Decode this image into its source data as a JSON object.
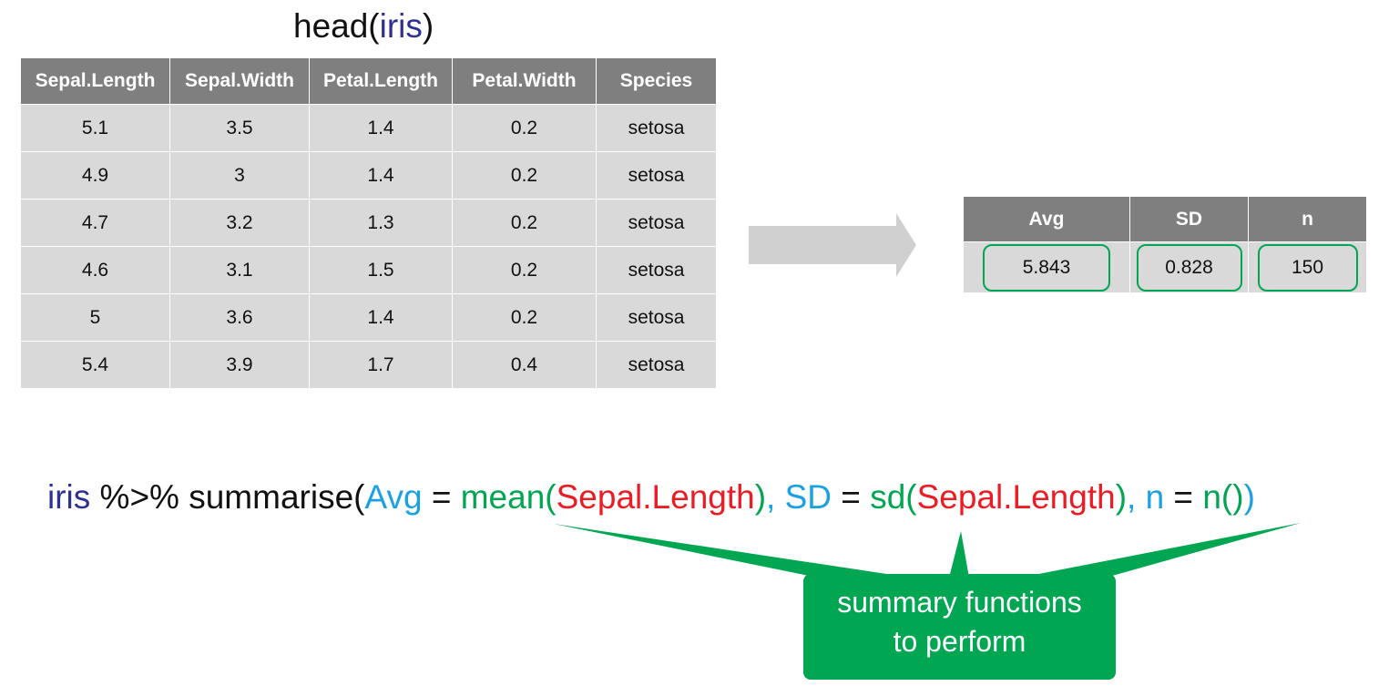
{
  "title": {
    "fn": "head(",
    "arg": "iris",
    "close": ")"
  },
  "iris_table": {
    "headers": [
      "Sepal.Length",
      "Sepal.Width",
      "Petal.Length",
      "Petal.Width",
      "Species"
    ],
    "rows": [
      [
        "5.1",
        "3.5",
        "1.4",
        "0.2",
        "setosa"
      ],
      [
        "4.9",
        "3",
        "1.4",
        "0.2",
        "setosa"
      ],
      [
        "4.7",
        "3.2",
        "1.3",
        "0.2",
        "setosa"
      ],
      [
        "4.6",
        "3.1",
        "1.5",
        "0.2",
        "setosa"
      ],
      [
        "5",
        "3.6",
        "1.4",
        "0.2",
        "setosa"
      ],
      [
        "5.4",
        "3.9",
        "1.7",
        "0.4",
        "setosa"
      ]
    ]
  },
  "summary_table": {
    "headers": [
      "Avg",
      "SD",
      "n"
    ],
    "values": [
      "5.843",
      "0.828",
      "150"
    ]
  },
  "code": {
    "obj": "iris",
    "pipe": " %>% summarise(",
    "arg1_name": "Avg",
    "eq1": " = ",
    "fn1": "mean(",
    "var1": "Sepal.Length",
    "fn1_close": ")",
    "sep1": ", ",
    "arg2_name": "SD",
    "eq2": " = ",
    "fn2": "sd(",
    "var2": "Sepal.Length",
    "fn2_close": ")",
    "sep2": ", ",
    "arg3_name": "n",
    "eq3": " = ",
    "fn3": "n()",
    "close": ")"
  },
  "callout": {
    "line1": "summary functions",
    "line2": "to perform"
  },
  "colors": {
    "header_bg": "#7f7f7f",
    "cell_bg": "#d9d9d9",
    "accent_green": "#00a651",
    "argument_blue": "#1ba1e2",
    "variable_red": "#ed1c24",
    "object_navy": "#2e3192",
    "arrow_gray": "#d0d0d0"
  }
}
